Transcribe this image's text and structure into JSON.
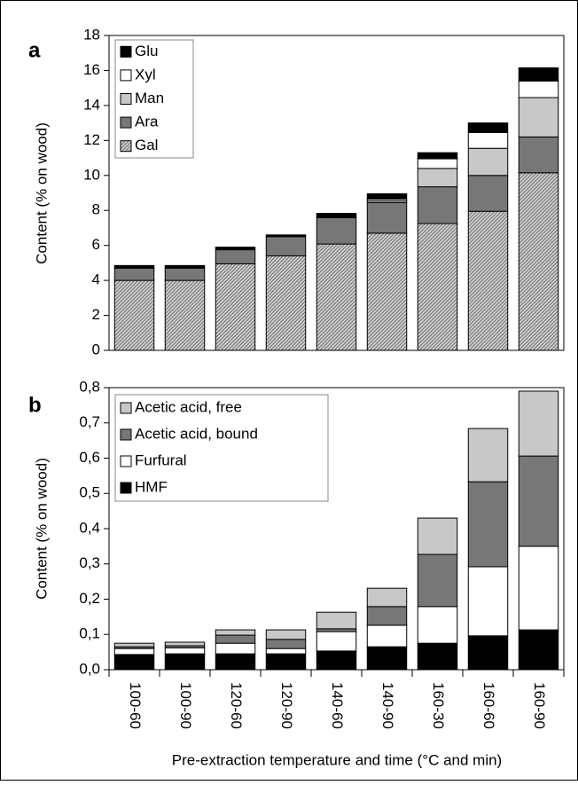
{
  "chart_data": [
    {
      "type": "bar",
      "stacked": true,
      "panel_label": "a",
      "y_label": "Content (% on wood)",
      "categories": [
        null,
        null,
        null,
        null,
        null,
        null,
        null,
        null,
        null
      ],
      "series": [
        {
          "name": "Gal",
          "color": "#b8b8b8",
          "pattern": "hatch",
          "values": [
            4.0,
            4.0,
            4.95,
            5.4,
            6.08,
            6.7,
            7.25,
            7.95,
            10.15
          ]
        },
        {
          "name": "Ara",
          "color": "#777777",
          "values": [
            0.7,
            0.7,
            0.8,
            1.1,
            1.5,
            1.75,
            2.1,
            2.05,
            2.05
          ]
        },
        {
          "name": "Man",
          "color": "#c8c8c8",
          "values": [
            0,
            0,
            0,
            0,
            0,
            0.1,
            1.05,
            1.55,
            2.25
          ]
        },
        {
          "name": "Xyl",
          "color": "#ffffff",
          "values": [
            0,
            0,
            0,
            0,
            0,
            0.1,
            0.55,
            0.9,
            0.95
          ]
        },
        {
          "name": "Glu",
          "color": "#000000",
          "values": [
            0.15,
            0.15,
            0.15,
            0.1,
            0.25,
            0.3,
            0.35,
            0.55,
            0.75
          ]
        }
      ],
      "ylim": [
        0,
        18
      ],
      "yticks": [
        0,
        2,
        4,
        6,
        8,
        10,
        12,
        14,
        16,
        18
      ],
      "legend": "top-left"
    },
    {
      "type": "bar",
      "stacked": true,
      "panel_label": "b",
      "y_label": "Content (% on wood)",
      "x_label": "Pre-extraction temperature and time (°C and min)",
      "categories": [
        "100-60",
        "100-90",
        "120-60",
        "120-90",
        "140-60",
        "140-90",
        "160-30",
        "160-60",
        "160-90"
      ],
      "series": [
        {
          "name": "HMF",
          "color": "#000000",
          "values": [
            0.043,
            0.045,
            0.045,
            0.045,
            0.053,
            0.065,
            0.075,
            0.096,
            0.113
          ]
        },
        {
          "name": "Furfural",
          "color": "#ffffff",
          "values": [
            0.017,
            0.017,
            0.03,
            0.015,
            0.055,
            0.061,
            0.104,
            0.196,
            0.237
          ]
        },
        {
          "name": "Acetic acid, bound",
          "color": "#777777",
          "values": [
            0.005,
            0.006,
            0.023,
            0.026,
            0.008,
            0.053,
            0.148,
            0.241,
            0.256
          ]
        },
        {
          "name": "Acetic acid, free",
          "color": "#c8c8c8",
          "values": [
            0.01,
            0.01,
            0.015,
            0.027,
            0.047,
            0.052,
            0.103,
            0.151,
            0.184
          ]
        }
      ],
      "ylim": [
        0,
        0.8
      ],
      "yticks": [
        {
          "value": 0,
          "label": "0,0"
        },
        {
          "value": 0.1,
          "label": "0,1"
        },
        {
          "value": 0.2,
          "label": "0,2"
        },
        {
          "value": 0.3,
          "label": "0,3"
        },
        {
          "value": 0.4,
          "label": "0,4"
        },
        {
          "value": 0.5,
          "label": "0,5"
        },
        {
          "value": 0.6,
          "label": "0,6"
        },
        {
          "value": 0.7,
          "label": "0,7"
        },
        {
          "value": 0.8,
          "label": "0,8"
        }
      ],
      "legend": "top-left"
    }
  ]
}
